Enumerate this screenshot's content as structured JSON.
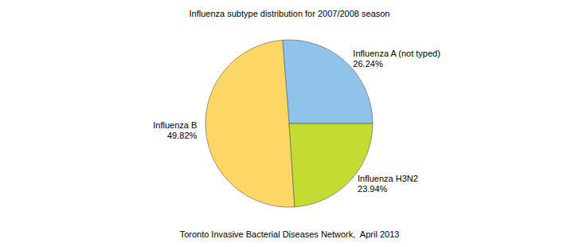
{
  "chart_data": {
    "type": "pie",
    "title": "Influenza subtype distribution for 2007/2008 season",
    "categories": [
      "Influenza A (not typed)",
      "Influenza B",
      "Influenza H3N2"
    ],
    "values": [
      26.24,
      49.82,
      23.94
    ],
    "value_labels": [
      "26.24%",
      "49.82%",
      "23.94%"
    ],
    "colors": [
      "#90c3ea",
      "#fdd766",
      "#c4db34"
    ],
    "data_labels": true,
    "annotations": [
      "Toronto Invasive Bacterial Diseases Network,  April 2013"
    ]
  }
}
